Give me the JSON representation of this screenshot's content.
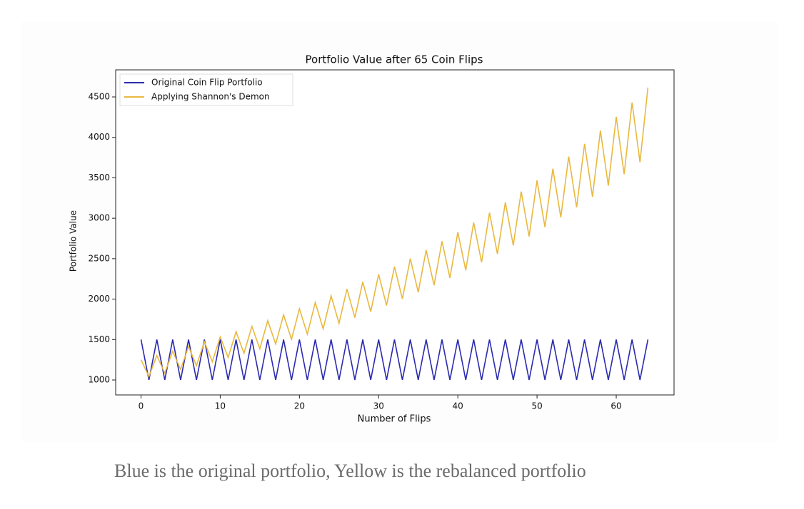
{
  "chart_data": {
    "type": "line",
    "title": "Portfolio Value after 65 Coin Flips",
    "x_label": "Number of Flips",
    "y_label": "Portfolio Value",
    "x": [
      0,
      1,
      2,
      3,
      4,
      5,
      6,
      7,
      8,
      9,
      10,
      11,
      12,
      13,
      14,
      15,
      16,
      17,
      18,
      19,
      20,
      21,
      22,
      23,
      24,
      25,
      26,
      27,
      28,
      29,
      30,
      31,
      32,
      33,
      34,
      35,
      36,
      37,
      38,
      39,
      40,
      41,
      42,
      43,
      44,
      45,
      46,
      47,
      48,
      49,
      50,
      51,
      52,
      53,
      54,
      55,
      56,
      57,
      58,
      59,
      60,
      61,
      62,
      63,
      64
    ],
    "series": [
      {
        "name": "Original Coin Flip Portfolio",
        "color": "#2b2bb0",
        "values": [
          1500,
          1000,
          1500,
          1000,
          1500,
          1000,
          1500,
          1000,
          1500,
          1000,
          1500,
          1000,
          1500,
          1000,
          1500,
          1000,
          1500,
          1000,
          1500,
          1000,
          1500,
          1000,
          1500,
          1000,
          1500,
          1000,
          1500,
          1000,
          1500,
          1000,
          1500,
          1000,
          1500,
          1000,
          1500,
          1000,
          1500,
          1000,
          1500,
          1000,
          1500,
          1000,
          1500,
          1000,
          1500,
          1000,
          1500,
          1000,
          1500,
          1000,
          1500,
          1000,
          1500,
          1000,
          1500,
          1000,
          1500,
          1000,
          1500,
          1000,
          1500,
          1000,
          1500,
          1000,
          1500
        ]
      },
      {
        "name": "Applying Shannon's Demon",
        "color": "#e9b83f",
        "values": [
          1250,
          1042,
          1302,
          1085,
          1356,
          1130,
          1413,
          1177,
          1472,
          1226,
          1533,
          1278,
          1597,
          1331,
          1663,
          1386,
          1733,
          1444,
          1805,
          1504,
          1880,
          1567,
          1959,
          1632,
          2040,
          1700,
          2125,
          1771,
          2214,
          1845,
          2306,
          1922,
          2402,
          2002,
          2502,
          2085,
          2606,
          2172,
          2715,
          2262,
          2828,
          2357,
          2946,
          2455,
          3069,
          2557,
          3196,
          2664,
          3330,
          2775,
          3468,
          2890,
          3613,
          3011,
          3763,
          3136,
          3920,
          3267,
          4084,
          3403,
          4254,
          3545,
          4431,
          3692,
          4616
        ]
      }
    ],
    "xlim": [
      -3.2,
      67.3
    ],
    "xticks": [
      0,
      10,
      20,
      30,
      40,
      50,
      60
    ],
    "ylim": [
      815,
      4835
    ],
    "yticks": [
      1000,
      1500,
      2000,
      2500,
      3000,
      3500,
      4000,
      4500
    ],
    "grid": false,
    "legend": "upper left"
  },
  "caption": "Blue is the original portfolio, Yellow is the rebalanced portfolio"
}
